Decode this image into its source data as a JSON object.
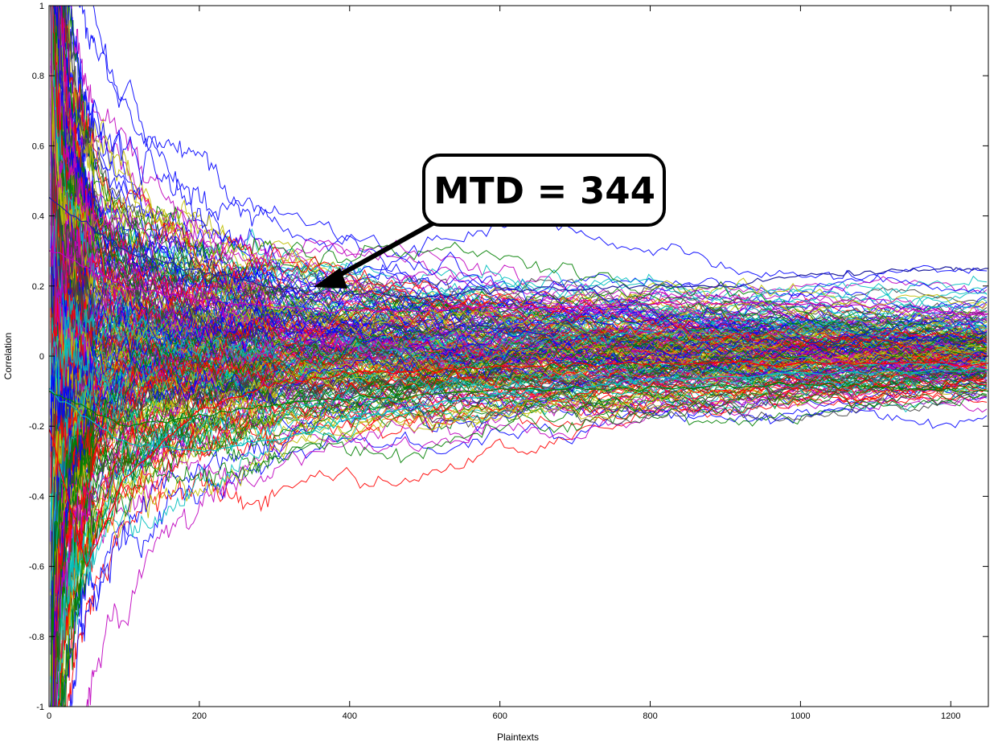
{
  "chart_data": {
    "type": "line",
    "xlabel": "Plaintexts",
    "ylabel": "Correlation",
    "xlim": [
      0,
      1250
    ],
    "ylim": [
      -1,
      1
    ],
    "x_ticks": [
      0,
      200,
      400,
      600,
      800,
      1000,
      1200
    ],
    "x_tick_labels": [
      "0",
      "200",
      "400",
      "600",
      "800",
      "1000",
      "1200"
    ],
    "y_ticks": [
      -1,
      -0.8,
      -0.6,
      -0.4,
      -0.2,
      0,
      0.2,
      0.4,
      0.6,
      0.8,
      1
    ],
    "y_tick_labels": [
      "-1",
      "-0.8",
      "-0.6",
      "-0.4",
      "-0.2",
      "0",
      "0.2",
      "0.4",
      "0.6",
      "0.8",
      "1"
    ],
    "grid": false,
    "series_count": 256,
    "colors": [
      "#0000ff",
      "#008000",
      "#ff0000",
      "#00bfbf",
      "#bf00bf",
      "#bfbf00",
      "#404040"
    ],
    "highlighted_series": [
      {
        "color": "#1f1f9f",
        "x": [
          0,
          100,
          200,
          300,
          344,
          400,
          500,
          600,
          700,
          800,
          900,
          1000,
          1100,
          1200,
          1250
        ],
        "values": [
          0.45,
          0.3,
          0.24,
          0.2,
          0.18,
          0.18,
          0.17,
          0.19,
          0.19,
          0.2,
          0.2,
          0.23,
          0.24,
          0.25,
          0.25
        ]
      },
      {
        "color": "#bf00bf",
        "x": [
          0,
          100,
          200,
          300,
          400,
          500,
          600,
          700,
          800,
          900,
          1000,
          1100,
          1200,
          1250
        ],
        "values": [
          0.3,
          0.2,
          0.16,
          0.14,
          0.13,
          0.13,
          0.14,
          0.14,
          0.15,
          0.15,
          0.15,
          0.14,
          0.12,
          0.12
        ]
      },
      {
        "color": "#00bfbf",
        "x": [
          0,
          100,
          200,
          300,
          400,
          500,
          600,
          700,
          800,
          1000,
          1250
        ],
        "values": [
          -0.1,
          -0.25,
          -0.27,
          -0.24,
          -0.18,
          -0.14,
          -0.11,
          -0.09,
          -0.07,
          -0.05,
          -0.04
        ]
      },
      {
        "color": "#ff0000",
        "x": [
          0,
          50,
          100,
          200,
          300,
          400,
          600,
          800,
          1000,
          1250
        ],
        "values": [
          -0.2,
          -0.6,
          -0.35,
          -0.15,
          -0.08,
          -0.05,
          -0.03,
          -0.02,
          -0.02,
          -0.02
        ]
      },
      {
        "color": "#008000",
        "x": [
          0,
          100,
          200,
          300,
          400,
          600,
          800,
          1000,
          1100,
          1250
        ],
        "values": [
          -0.1,
          -0.2,
          -0.17,
          -0.14,
          -0.12,
          -0.1,
          -0.09,
          -0.08,
          -0.09,
          -0.1
        ]
      }
    ],
    "annotation": {
      "text": "MTD = 344",
      "points_to_x": 344,
      "points_to_y": 0.19
    }
  }
}
